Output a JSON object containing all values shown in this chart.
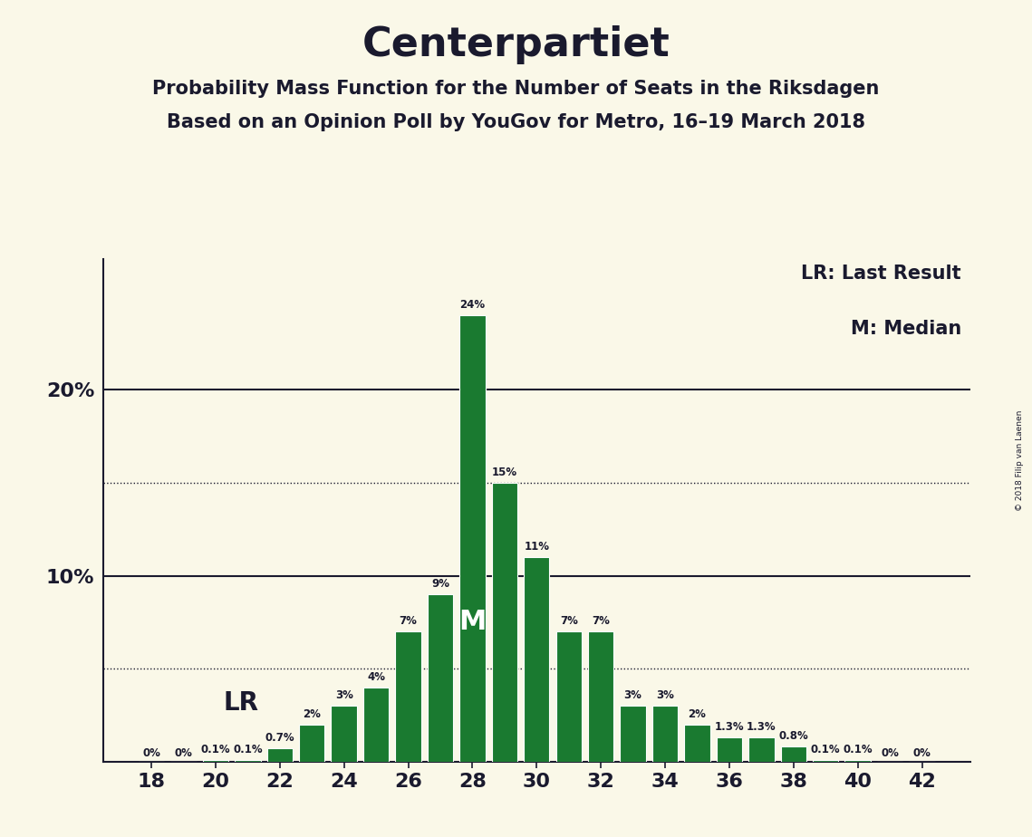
{
  "title": "Centerpartiet",
  "subtitle1": "Probability Mass Function for the Number of Seats in the Riksdagen",
  "subtitle2": "Based on an Opinion Poll by YouGov for Metro, 16–19 March 2018",
  "copyright": "© 2018 Filip van Laenen",
  "legend_lr": "LR: Last Result",
  "legend_m": "M: Median",
  "seats": [
    18,
    19,
    20,
    21,
    22,
    23,
    24,
    25,
    26,
    27,
    28,
    29,
    30,
    31,
    32,
    33,
    34,
    35,
    36,
    37,
    38,
    39,
    40,
    41,
    42
  ],
  "values": [
    0.0,
    0.0,
    0.1,
    0.1,
    0.7,
    2.0,
    3.0,
    4.0,
    7.0,
    9.0,
    24.0,
    15.0,
    11.0,
    7.0,
    7.0,
    3.0,
    3.0,
    2.0,
    1.3,
    1.3,
    0.8,
    0.1,
    0.1,
    0.0,
    0.0
  ],
  "labels": [
    "0%",
    "0%",
    "0.1%",
    "0.1%",
    "0.7%",
    "2%",
    "3%",
    "4%",
    "7%",
    "9%",
    "24%",
    "15%",
    "11%",
    "7%",
    "7%",
    "3%",
    "3%",
    "2%",
    "1.3%",
    "1.3%",
    "0.8%",
    "0.1%",
    "0.1%",
    "0%",
    "0%"
  ],
  "bar_color": "#1a7a30",
  "background_color": "#faf8e8",
  "lr_seat": 22,
  "median_seat": 28,
  "ylim": [
    0,
    27
  ],
  "solid_lines": [
    10.0,
    20.0
  ],
  "dotted_lines": [
    5.0,
    15.0
  ],
  "text_color": "#1a1a2e",
  "bar_width": 0.8,
  "label_fontsize": 8.5,
  "tick_fontsize": 16,
  "title_fontsize": 32,
  "subtitle_fontsize": 15,
  "legend_fontsize": 15,
  "lr_fontsize": 20,
  "m_fontsize": 22
}
